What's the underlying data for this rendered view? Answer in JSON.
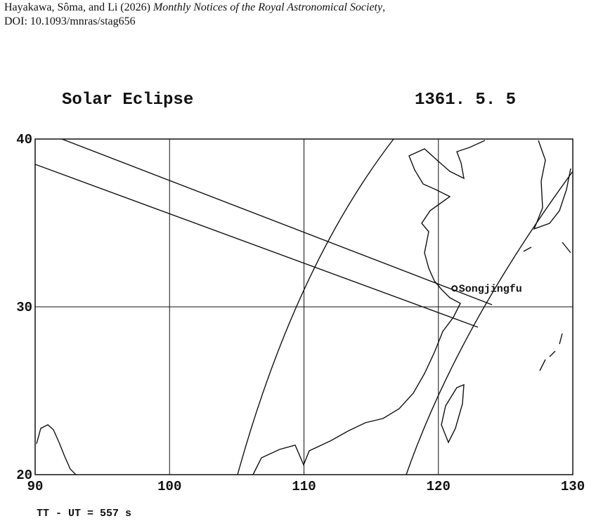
{
  "header": {
    "authors": "Hayakawa, Sôma, and Li (2026)",
    "journal": "Monthly Notices of the Royal Astronomical Society",
    "journal_suffix": ",",
    "doi": "DOI: 10.1093/mnras/stag656"
  },
  "chart_data": {
    "type": "map",
    "title": "Solar Eclipse",
    "date": "1361. 5. 5",
    "note": "TT - UT = 557 s",
    "xlim": [
      90,
      130
    ],
    "ylim": [
      20,
      40
    ],
    "xticks": [
      90,
      100,
      110,
      120,
      130
    ],
    "yticks": [
      20,
      30,
      40
    ],
    "grid": true,
    "points": [
      {
        "name": "Songjingfu",
        "x": 121.2,
        "y": 31.1
      }
    ]
  }
}
